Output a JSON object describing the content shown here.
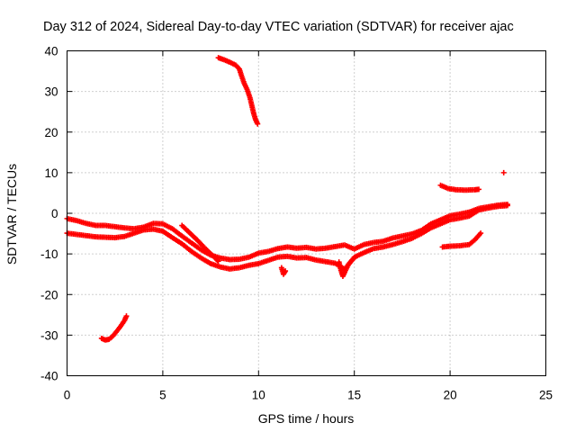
{
  "chart_data": {
    "type": "scatter",
    "title": "Day 312 of 2024, Sidereal Day-to-day VTEC variation (SDTVAR) for receiver ajac",
    "xlabel": "GPS time / hours",
    "ylabel": "SDTVAR / TECUs",
    "xlim": [
      0,
      25
    ],
    "ylim": [
      -40,
      40
    ],
    "xticks": [
      0,
      5,
      10,
      15,
      20,
      25
    ],
    "yticks": [
      -40,
      -30,
      -20,
      -10,
      0,
      10,
      20,
      30,
      40
    ],
    "grid": true,
    "legend": "none",
    "marker": "plus",
    "color": "#ff0000",
    "series": [
      {
        "name": "arc-high",
        "points": [
          [
            7.9,
            38.3
          ],
          [
            8.2,
            37.8
          ],
          [
            8.5,
            37.2
          ],
          [
            8.8,
            36.5
          ],
          [
            9.0,
            35.5
          ],
          [
            9.1,
            34.0
          ],
          [
            9.25,
            32.0
          ],
          [
            9.4,
            30.5
          ],
          [
            9.55,
            28.5
          ],
          [
            9.65,
            26.5
          ],
          [
            9.75,
            24.5
          ],
          [
            9.85,
            23.0
          ],
          [
            9.95,
            22.0
          ]
        ]
      },
      {
        "name": "arc-low",
        "points": [
          [
            1.8,
            -30.8
          ],
          [
            2.0,
            -31.2
          ],
          [
            2.2,
            -31.0
          ],
          [
            2.4,
            -30.2
          ],
          [
            2.6,
            -29.0
          ],
          [
            2.8,
            -27.8
          ],
          [
            3.0,
            -26.4
          ],
          [
            3.1,
            -25.3
          ]
        ]
      },
      {
        "name": "band-upper",
        "points": [
          [
            0,
            -1.3
          ],
          [
            0.5,
            -1.8
          ],
          [
            1.0,
            -2.5
          ],
          [
            1.5,
            -3.0
          ],
          [
            2.0,
            -3.0
          ],
          [
            2.5,
            -3.3
          ],
          [
            3.0,
            -3.6
          ],
          [
            3.5,
            -3.8
          ],
          [
            4.0,
            -3.4
          ],
          [
            4.5,
            -2.5
          ],
          [
            5.0,
            -2.6
          ],
          [
            5.5,
            -3.8
          ],
          [
            6.0,
            -5.6
          ],
          [
            6.5,
            -7.3
          ],
          [
            7.0,
            -9.0
          ],
          [
            7.5,
            -10.3
          ],
          [
            8.0,
            -11.0
          ],
          [
            8.5,
            -11.4
          ],
          [
            9.0,
            -11.3
          ],
          [
            9.5,
            -10.8
          ],
          [
            10.0,
            -9.8
          ],
          [
            10.5,
            -9.4
          ],
          [
            11.0,
            -8.7
          ],
          [
            11.5,
            -8.3
          ],
          [
            12.0,
            -8.6
          ],
          [
            12.5,
            -8.4
          ],
          [
            13.0,
            -8.8
          ],
          [
            13.5,
            -8.6
          ],
          [
            14.0,
            -8.2
          ],
          [
            14.5,
            -7.8
          ],
          [
            15.0,
            -8.8
          ],
          [
            15.5,
            -7.7
          ],
          [
            16.0,
            -7.2
          ],
          [
            16.5,
            -6.9
          ],
          [
            17.0,
            -6.1
          ],
          [
            17.5,
            -5.6
          ],
          [
            18.0,
            -5.1
          ],
          [
            18.5,
            -4.2
          ],
          [
            19.0,
            -2.6
          ],
          [
            19.5,
            -1.6
          ],
          [
            20.0,
            -0.6
          ],
          [
            20.5,
            -0.2
          ],
          [
            21.0,
            0.3
          ],
          [
            21.5,
            1.2
          ],
          [
            22.0,
            1.6
          ],
          [
            22.5,
            2.0
          ],
          [
            23.0,
            2.2
          ]
        ]
      },
      {
        "name": "band-lower",
        "points": [
          [
            0,
            -4.9
          ],
          [
            0.5,
            -5.2
          ],
          [
            1.0,
            -5.5
          ],
          [
            1.5,
            -5.8
          ],
          [
            2.0,
            -5.9
          ],
          [
            2.5,
            -6.0
          ],
          [
            3.0,
            -5.7
          ],
          [
            3.5,
            -4.9
          ],
          [
            4.0,
            -4.1
          ],
          [
            4.5,
            -3.9
          ],
          [
            5.0,
            -4.4
          ],
          [
            5.5,
            -6.0
          ],
          [
            6.0,
            -7.5
          ],
          [
            6.5,
            -9.4
          ],
          [
            7.0,
            -11.0
          ],
          [
            7.5,
            -12.4
          ],
          [
            8.0,
            -13.2
          ],
          [
            8.5,
            -13.7
          ],
          [
            9.0,
            -13.4
          ],
          [
            9.5,
            -12.8
          ],
          [
            10.0,
            -12.4
          ],
          [
            10.5,
            -11.6
          ],
          [
            11.0,
            -10.8
          ],
          [
            11.5,
            -10.6
          ],
          [
            12.0,
            -11.0
          ],
          [
            12.5,
            -10.9
          ],
          [
            13.0,
            -11.5
          ],
          [
            13.5,
            -11.9
          ],
          [
            14.0,
            -12.3
          ],
          [
            14.5,
            -13.8
          ],
          [
            15.0,
            -10.8
          ],
          [
            15.5,
            -9.7
          ],
          [
            16.0,
            -8.7
          ],
          [
            16.5,
            -8.3
          ],
          [
            17.0,
            -7.7
          ],
          [
            17.5,
            -7.0
          ],
          [
            18.0,
            -6.2
          ],
          [
            18.5,
            -5.0
          ],
          [
            19.0,
            -3.6
          ],
          [
            19.5,
            -2.6
          ],
          [
            20.0,
            -1.6
          ],
          [
            20.5,
            -1.2
          ],
          [
            21.0,
            -0.7
          ],
          [
            21.5,
            0.8
          ],
          [
            22.0,
            1.3
          ],
          [
            22.5,
            1.7
          ],
          [
            23.0,
            1.9
          ]
        ]
      },
      {
        "name": "dip-branch",
        "points": [
          [
            6.0,
            -3.0
          ],
          [
            6.4,
            -4.8
          ],
          [
            6.8,
            -6.6
          ],
          [
            7.2,
            -8.6
          ],
          [
            7.6,
            -10.4
          ],
          [
            7.9,
            -11.8
          ]
        ]
      },
      {
        "name": "spike-14",
        "points": [
          [
            14.2,
            -12.0
          ],
          [
            14.3,
            -14.0
          ],
          [
            14.4,
            -15.5
          ],
          [
            14.5,
            -14.5
          ],
          [
            14.7,
            -12.5
          ],
          [
            15.0,
            -11.0
          ]
        ]
      },
      {
        "name": "spike-11",
        "points": [
          [
            11.2,
            -13.4
          ],
          [
            11.3,
            -15.0
          ],
          [
            11.4,
            -14.2
          ]
        ]
      },
      {
        "name": "arc-20-upper",
        "points": [
          [
            19.5,
            6.9
          ],
          [
            19.9,
            6.1
          ],
          [
            20.3,
            5.8
          ],
          [
            20.8,
            5.7
          ],
          [
            21.3,
            5.8
          ],
          [
            21.5,
            5.9
          ]
        ]
      },
      {
        "name": "arc-20-lower",
        "points": [
          [
            19.6,
            -8.3
          ],
          [
            20.0,
            -8.1
          ],
          [
            20.5,
            -8.0
          ],
          [
            21.0,
            -7.7
          ],
          [
            21.3,
            -6.5
          ],
          [
            21.6,
            -4.9
          ]
        ]
      },
      {
        "name": "outlier",
        "points": [
          [
            22.8,
            10.0
          ]
        ]
      }
    ]
  }
}
